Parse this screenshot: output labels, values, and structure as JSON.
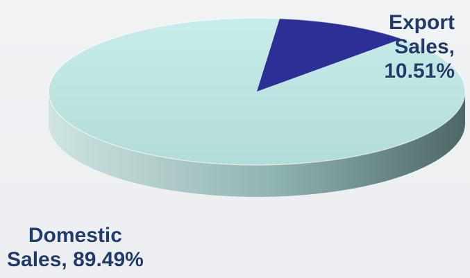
{
  "chart_data": {
    "type": "pie",
    "categories": [
      "Domestic Sales",
      "Export Sales"
    ],
    "values": [
      89.49,
      10.51
    ],
    "labels": [
      "Domestic Sales, 89.49%",
      "Export Sales, 10.51%"
    ],
    "colors": [
      "#b7dfdd",
      "#2c2f95"
    ],
    "label_lines": {
      "domestic": [
        "Domestic",
        "Sales, 89.49%"
      ],
      "export": [
        "Export",
        "Sales,",
        "10.51%"
      ]
    }
  }
}
